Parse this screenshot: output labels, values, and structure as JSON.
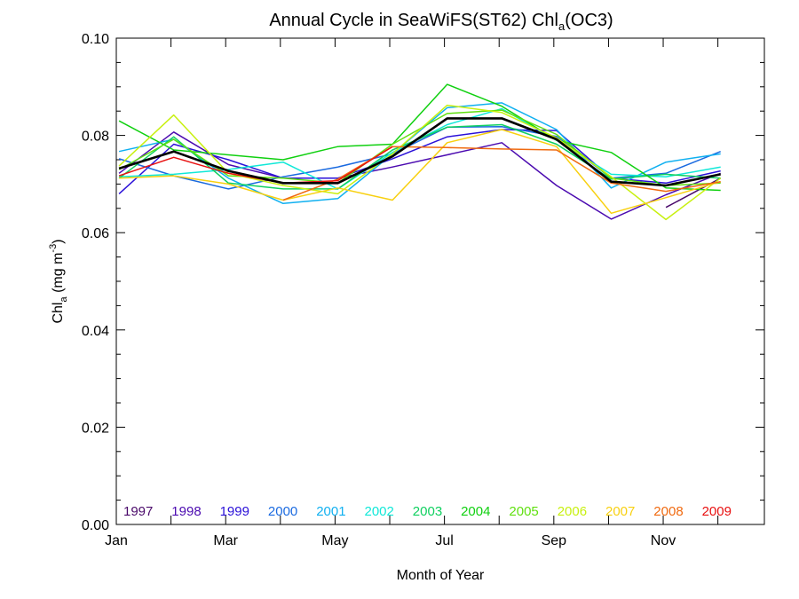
{
  "chart_data": {
    "type": "line",
    "title_main": "Annual Cycle in SeaWiFS(ST62) Chl",
    "title_sub": "a",
    "title_tail": "(OC3)",
    "xlabel": "Month of Year",
    "ylabel_main": "Chl",
    "ylabel_sub": "a",
    "ylabel_units": " (mg m",
    "ylabel_sup": "-3",
    "ylabel_close": ")",
    "xlim": [
      1,
      12.85
    ],
    "ylim": [
      0,
      0.1
    ],
    "x_ticks": [
      {
        "v": 1,
        "label": "Jan"
      },
      {
        "v": 3,
        "label": "Mar"
      },
      {
        "v": 5,
        "label": "May"
      },
      {
        "v": 7,
        "label": "Jul"
      },
      {
        "v": 9,
        "label": "Sep"
      },
      {
        "v": 11,
        "label": "Nov"
      }
    ],
    "y_ticks": [
      {
        "v": 0.0,
        "label": "0.00"
      },
      {
        "v": 0.02,
        "label": "0.02"
      },
      {
        "v": 0.04,
        "label": "0.04"
      },
      {
        "v": 0.06,
        "label": "0.06"
      },
      {
        "v": 0.08,
        "label": "0.08"
      },
      {
        "v": 0.1,
        "label": "0.10"
      }
    ],
    "grid": false,
    "legend_position": "bottom",
    "x": [
      1.05,
      2.05,
      3.05,
      4.05,
      5.05,
      6.05,
      7.05,
      8.05,
      9.05,
      10.05,
      11.05,
      12.05
    ],
    "series": [
      {
        "name": "1997",
        "color": "#4a0a6a",
        "values": [
          null,
          null,
          null,
          null,
          null,
          null,
          null,
          null,
          null,
          null,
          0.0652,
          0.0712
        ]
      },
      {
        "name": "1998",
        "color": "#4b0ab0",
        "values": [
          0.0722,
          0.0807,
          0.074,
          0.0712,
          0.0712,
          0.0735,
          0.076,
          0.0785,
          0.0697,
          0.0628,
          0.0678,
          0.0722
        ]
      },
      {
        "name": "1999",
        "color": "#2a10d8",
        "values": [
          0.068,
          0.0782,
          0.075,
          0.0712,
          0.0712,
          0.0752,
          0.0797,
          0.0812,
          0.081,
          0.0712,
          0.0702,
          0.0727
        ]
      },
      {
        "name": "2000",
        "color": "#1a6ae0",
        "values": [
          0.0752,
          0.0717,
          0.069,
          0.0715,
          0.0735,
          0.0762,
          0.0817,
          0.0818,
          0.0798,
          0.0712,
          0.0722,
          0.0767
        ]
      },
      {
        "name": "2001",
        "color": "#10b0f0",
        "values": [
          0.0767,
          0.0792,
          0.0712,
          0.066,
          0.067,
          0.0762,
          0.0857,
          0.0867,
          0.0812,
          0.0692,
          0.0745,
          0.0762
        ]
      },
      {
        "name": "2002",
        "color": "#10e8d8",
        "values": [
          0.0715,
          0.072,
          0.073,
          0.0745,
          0.069,
          0.0765,
          0.0822,
          0.0855,
          0.079,
          0.072,
          0.0715,
          0.0735
        ]
      },
      {
        "name": "2003",
        "color": "#10d060",
        "values": [
          0.0712,
          0.0797,
          0.0702,
          0.069,
          0.069,
          0.077,
          0.0817,
          0.0822,
          0.0782,
          0.071,
          0.072,
          0.0712
        ]
      },
      {
        "name": "2004",
        "color": "#10d010",
        "values": [
          0.083,
          0.077,
          0.076,
          0.075,
          0.0777,
          0.0782,
          0.0905,
          0.086,
          0.079,
          0.0765,
          0.0692,
          0.0687
        ]
      },
      {
        "name": "2005",
        "color": "#60e010",
        "values": [
          0.073,
          0.0792,
          0.0717,
          0.0712,
          0.0702,
          0.0782,
          0.0845,
          0.0852,
          0.0802,
          0.0712,
          0.0697,
          0.0702
        ]
      },
      {
        "name": "2006",
        "color": "#c8f010",
        "values": [
          0.0737,
          0.0842,
          0.0722,
          0.0697,
          0.068,
          0.0762,
          0.0862,
          0.0847,
          0.0795,
          0.0715,
          0.0627,
          0.0712
        ]
      },
      {
        "name": "2007",
        "color": "#f8d010",
        "values": [
          0.0712,
          0.0717,
          0.07,
          0.0667,
          0.0692,
          0.0667,
          0.0785,
          0.0812,
          0.0777,
          0.064,
          0.0672,
          0.0705
        ]
      },
      {
        "name": "2008",
        "color": "#f06a10",
        "values": [
          null,
          null,
          null,
          0.0667,
          0.071,
          0.0777,
          0.0775,
          0.0772,
          0.077,
          0.0702,
          0.0685,
          0.0705
        ]
      },
      {
        "name": "2009",
        "color": "#e81010",
        "values": [
          0.0717,
          0.0755,
          0.0722,
          0.0702,
          0.0707,
          0.0777,
          null,
          null,
          null,
          null,
          null,
          null
        ]
      },
      {
        "name": "",
        "color": "#000000",
        "values": [
          0.0732,
          0.0767,
          0.0727,
          0.0702,
          0.0702,
          0.0757,
          0.0835,
          0.0835,
          0.0792,
          0.0705,
          0.0697,
          0.072
        ]
      }
    ]
  }
}
